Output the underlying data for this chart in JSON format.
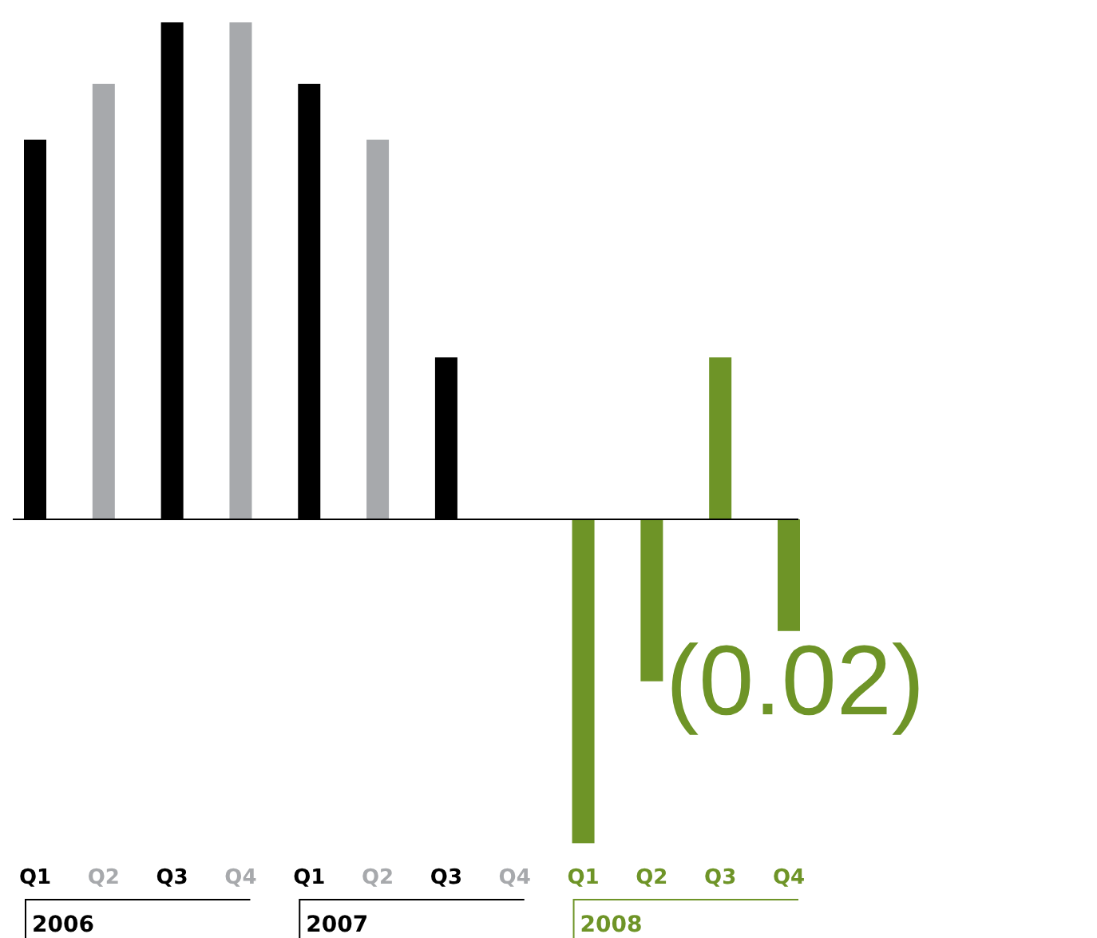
{
  "chart_data": {
    "type": "bar",
    "categories": [
      "Q1",
      "Q2",
      "Q3",
      "Q4",
      "Q1",
      "Q2",
      "Q3",
      "Q4",
      "Q1",
      "Q2",
      "Q3",
      "Q4"
    ],
    "values": [
      0.068,
      0.078,
      0.089,
      0.089,
      0.078,
      0.068,
      0.029,
      0,
      -0.058,
      -0.029,
      0.029,
      -0.02
    ],
    "colors": [
      "#000000",
      "#a7a9ac",
      "#000000",
      "#a7a9ac",
      "#000000",
      "#a7a9ac",
      "#000000",
      "#a7a9ac",
      "#6e9427",
      "#6e9427",
      "#6e9427",
      "#6e9427"
    ],
    "value_labels": [
      null,
      null,
      null,
      null,
      null,
      null,
      null,
      null,
      null,
      null,
      null,
      "(0.02)"
    ],
    "annotations": [
      "2006",
      "2007",
      "2008"
    ]
  }
}
